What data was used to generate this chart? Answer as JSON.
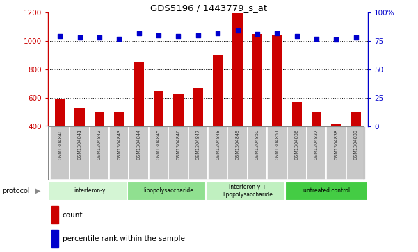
{
  "title": "GDS5196 / 1443779_s_at",
  "samples": [
    "GSM1304840",
    "GSM1304841",
    "GSM1304842",
    "GSM1304843",
    "GSM1304844",
    "GSM1304845",
    "GSM1304846",
    "GSM1304847",
    "GSM1304848",
    "GSM1304849",
    "GSM1304850",
    "GSM1304851",
    "GSM1304836",
    "GSM1304837",
    "GSM1304838",
    "GSM1304839"
  ],
  "counts": [
    595,
    525,
    498,
    495,
    855,
    645,
    630,
    665,
    900,
    1195,
    1050,
    1040,
    570,
    498,
    415,
    495
  ],
  "percentiles": [
    79,
    78,
    78,
    77,
    82,
    80,
    79,
    80,
    82,
    84,
    81,
    82,
    79,
    77,
    76,
    78
  ],
  "ylim_left": [
    400,
    1200
  ],
  "ylim_right": [
    0,
    100
  ],
  "yticks_left": [
    400,
    600,
    800,
    1000,
    1200
  ],
  "yticks_right": [
    0,
    25,
    50,
    75,
    100
  ],
  "groups": [
    {
      "label": "interferon-γ",
      "start": 0,
      "end": 4,
      "color": "#d4f5d4"
    },
    {
      "label": "lipopolysaccharide",
      "start": 4,
      "end": 8,
      "color": "#90e090"
    },
    {
      "label": "interferon-γ +\nlipopolysaccharide",
      "start": 8,
      "end": 12,
      "color": "#c0f0c0"
    },
    {
      "label": "untreated control",
      "start": 12,
      "end": 16,
      "color": "#44cc44"
    }
  ],
  "bar_color": "#cc0000",
  "dot_color": "#0000cc",
  "bg_color": "#ffffff",
  "bar_width": 0.5,
  "left_axis_color": "#cc0000",
  "right_axis_color": "#0000cc",
  "label_bg": "#c8c8c8",
  "separator_color": "#ffffff"
}
